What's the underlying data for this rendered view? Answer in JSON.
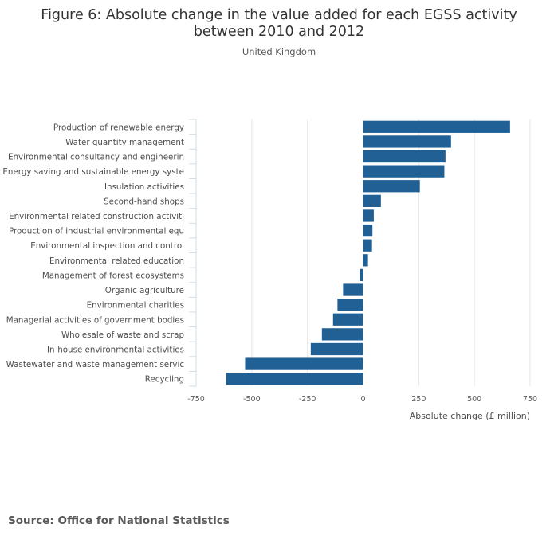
{
  "chart_data": {
    "type": "bar",
    "orientation": "horizontal",
    "title": "Figure 6: Absolute change in the value added for each EGSS activity between 2010 and 2012",
    "title_lines": [
      "Figure 6: Absolute change in the value added for each EGSS activity",
      "between 2010 and 2012"
    ],
    "subtitle": "United Kingdom",
    "xlabel": "Absolute change (£ million)",
    "ylabel": "",
    "xlim": [
      -750,
      750
    ],
    "xticks": [
      -750,
      -500,
      -250,
      0,
      250,
      500,
      750
    ],
    "xtick_labels": [
      "-750",
      "-500",
      "-250",
      "0",
      "250",
      "500",
      "750"
    ],
    "grid": true,
    "categories": [
      "Production of renewable energy",
      "Water quantity management",
      "Environmental consultancy and engineerin",
      "Energy saving and sustainable energy syste",
      "Insulation activities",
      "Second-hand shops",
      "Environmental related construction activiti",
      "Production of industrial environmental equ",
      "Environmental inspection and control",
      "Environmental related education",
      "Management of forest ecosystems",
      "Organic agriculture",
      "Environmental charities",
      "Managerial activities of government bodies",
      "Wholesale of waste and scrap",
      "In-house environmental activities",
      "Wastewater and waste management servic",
      "Recycling"
    ],
    "values": [
      660,
      395,
      370,
      365,
      255,
      80,
      48,
      42,
      40,
      22,
      -14,
      -90,
      -115,
      -135,
      -185,
      -235,
      -530,
      -615
    ],
    "bar_color": "#206095"
  },
  "source": "Source: Office for National Statistics"
}
